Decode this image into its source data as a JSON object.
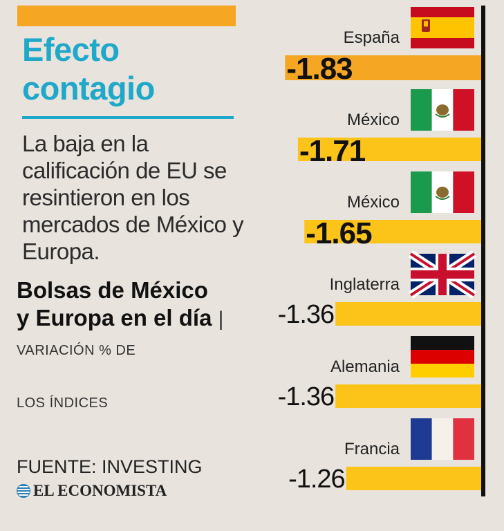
{
  "title": {
    "line1": "Efecto",
    "line2": "contagio"
  },
  "subtitle": "La baja en la calificación de EU se resintieron en los mercados de México y Europa.",
  "chart_title": {
    "main": "Bolsas de México y Europa en el día",
    "separator": "|",
    "unit_a": "VARIACIÓN % DE",
    "unit_b": "LOS ÍNDICES"
  },
  "source": "FUENTE: INVESTING",
  "brand": "EL ECONOMISTA",
  "colors": {
    "background": "#e8e3dc",
    "accent_blue": "#1fa8c9",
    "bar_orange": "#f5a623",
    "bar_yellow": "#fcc419"
  },
  "chart_data": {
    "type": "bar",
    "orientation": "horizontal",
    "title": "Bolsas de México y Europa en el día",
    "ylabel": "VARIACIÓN % DE LOS ÍNDICES",
    "categories": [
      "España",
      "México",
      "México",
      "Inglaterra",
      "Alemania",
      "Francia"
    ],
    "values": [
      -1.83,
      -1.71,
      -1.65,
      -1.36,
      -1.36,
      -1.26
    ],
    "value_labels": [
      "-1.83",
      "-1.71",
      "-1.65",
      "-1.36",
      "-1.36",
      "-1.26"
    ],
    "flags": [
      "spain-flag",
      "mexico-flag",
      "mexico-flag",
      "uk-flag",
      "germany-flag",
      "france-flag"
    ],
    "xlim": [
      -2,
      0
    ]
  }
}
